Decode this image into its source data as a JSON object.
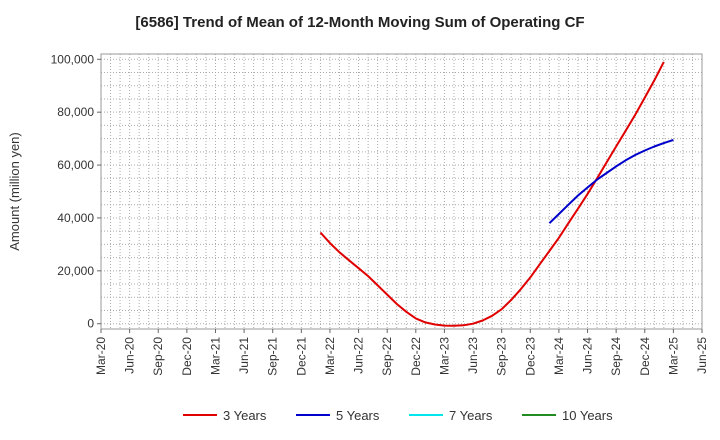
{
  "chart_data": {
    "type": "line",
    "title": "[6586]  Trend of Mean of 12-Month Moving Sum of Operating CF",
    "ylabel": "Amount (million yen)",
    "xlabel": "",
    "ylim": [
      -2000,
      102000
    ],
    "y_ticks": [
      0,
      20000,
      40000,
      60000,
      80000,
      100000
    ],
    "y_tick_labels": [
      "0",
      "20,000",
      "40,000",
      "60,000",
      "80,000",
      "100,000"
    ],
    "x_tick_labels": [
      "Mar-20",
      "Jun-20",
      "Sep-20",
      "Dec-20",
      "Mar-21",
      "Jun-21",
      "Sep-21",
      "Dec-21",
      "Mar-22",
      "Jun-22",
      "Sep-22",
      "Dec-22",
      "Mar-23",
      "Jun-23",
      "Sep-23",
      "Dec-23",
      "Mar-24",
      "Jun-24",
      "Sep-24",
      "Dec-24",
      "Mar-25",
      "Jun-25"
    ],
    "grid": true,
    "legend_position": "bottom",
    "series": [
      {
        "name": "3 Years",
        "color": "#e00000",
        "points": [
          [
            "Feb-22",
            34500
          ],
          [
            "Mar-22",
            30500
          ],
          [
            "Apr-22",
            27000
          ],
          [
            "May-22",
            24000
          ],
          [
            "Jun-22",
            21000
          ],
          [
            "Jul-22",
            18000
          ],
          [
            "Aug-22",
            14500
          ],
          [
            "Sep-22",
            11000
          ],
          [
            "Oct-22",
            7500
          ],
          [
            "Nov-22",
            4500
          ],
          [
            "Dec-22",
            2000
          ],
          [
            "Jan-23",
            500
          ],
          [
            "Feb-23",
            -300
          ],
          [
            "Mar-23",
            -700
          ],
          [
            "Apr-23",
            -800
          ],
          [
            "May-23",
            -600
          ],
          [
            "Jun-23",
            0
          ],
          [
            "Jul-23",
            1200
          ],
          [
            "Aug-23",
            3000
          ],
          [
            "Sep-23",
            5500
          ],
          [
            "Oct-23",
            9000
          ],
          [
            "Nov-23",
            13000
          ],
          [
            "Dec-23",
            17500
          ],
          [
            "Jan-24",
            22500
          ],
          [
            "Feb-24",
            27500
          ],
          [
            "Mar-24",
            32500
          ],
          [
            "Apr-24",
            38000
          ],
          [
            "May-24",
            43500
          ],
          [
            "Jun-24",
            49000
          ],
          [
            "Jul-24",
            55000
          ],
          [
            "Aug-24",
            61000
          ],
          [
            "Sep-24",
            67000
          ],
          [
            "Oct-24",
            73000
          ],
          [
            "Nov-24",
            79000
          ],
          [
            "Dec-24",
            85500
          ],
          [
            "Jan-25",
            92000
          ],
          [
            "Feb-25",
            99000
          ]
        ]
      },
      {
        "name": "5 Years",
        "color": "#0000cc",
        "points": [
          [
            "Feb-24",
            38000
          ],
          [
            "Mar-24",
            41500
          ],
          [
            "Apr-24",
            45000
          ],
          [
            "May-24",
            48500
          ],
          [
            "Jun-24",
            51500
          ],
          [
            "Jul-24",
            54500
          ],
          [
            "Aug-24",
            57000
          ],
          [
            "Sep-24",
            59500
          ],
          [
            "Oct-24",
            61800
          ],
          [
            "Nov-24",
            63800
          ],
          [
            "Dec-24",
            65500
          ],
          [
            "Jan-25",
            67000
          ],
          [
            "Feb-25",
            68300
          ],
          [
            "Mar-25",
            69500
          ]
        ]
      },
      {
        "name": "7 Years",
        "color": "#00e5ee",
        "points": []
      },
      {
        "name": "10 Years",
        "color": "#228b22",
        "points": []
      }
    ]
  }
}
